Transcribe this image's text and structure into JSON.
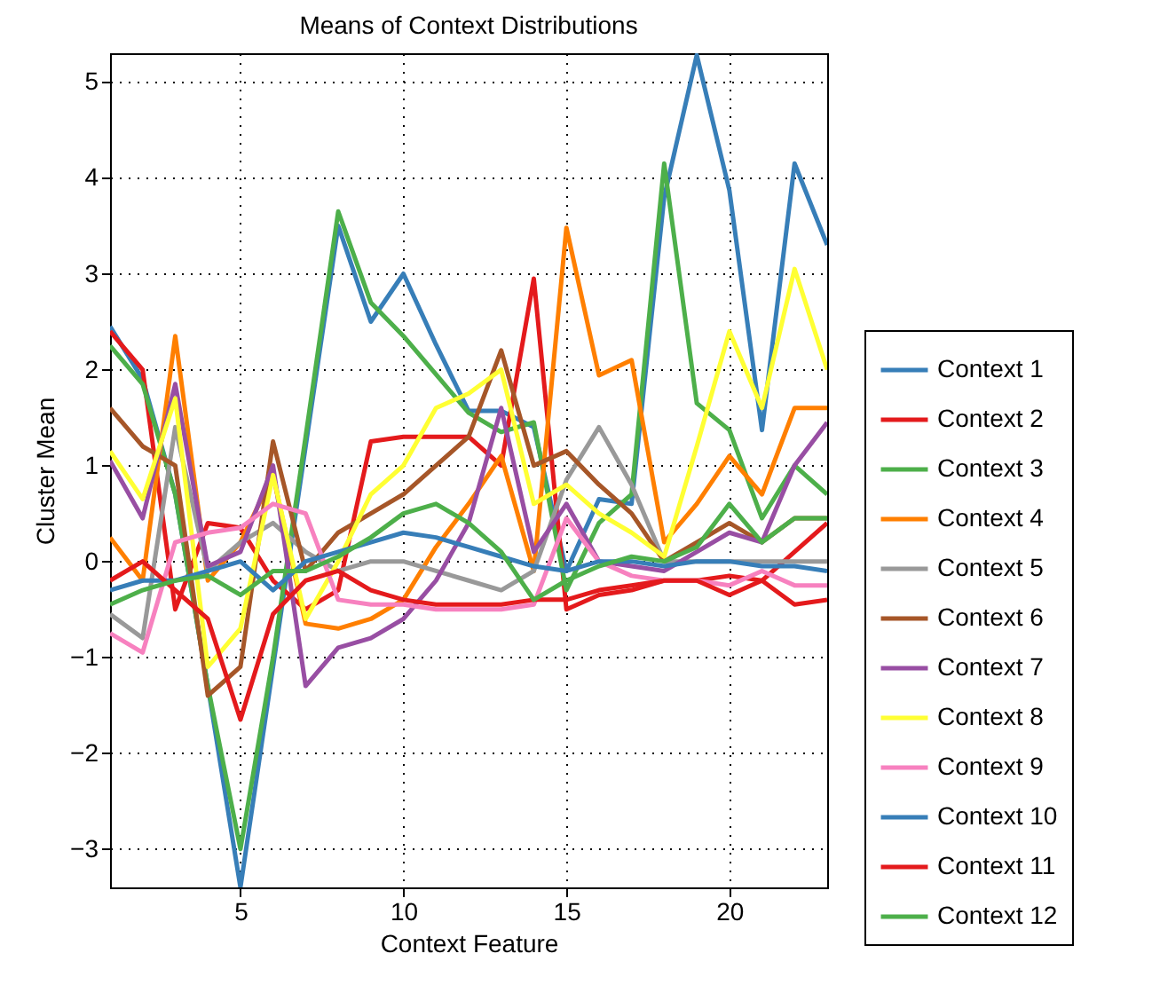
{
  "chart_data": {
    "type": "line",
    "title": "Means of Context Distributions",
    "xlabel": "Context Feature",
    "ylabel": "Cluster Mean",
    "x": [
      1,
      2,
      3,
      4,
      5,
      6,
      7,
      8,
      9,
      10,
      11,
      12,
      13,
      14,
      15,
      16,
      17,
      18,
      19,
      20,
      21,
      22,
      23
    ],
    "xlim": [
      1,
      23
    ],
    "xticks": [
      5,
      10,
      15,
      20
    ],
    "ylim": [
      -3.4,
      5.3
    ],
    "yticks": [
      -3,
      -2,
      -1,
      0,
      1,
      2,
      3,
      4,
      5
    ],
    "grid": true,
    "legend": "right",
    "line_style": "solid",
    "marker": "none",
    "series": [
      {
        "name": "Context 1",
        "color": "#377eb8",
        "values": [
          2.45,
          1.9,
          0.7,
          -1.3,
          -3.4,
          -1.1,
          1.2,
          3.5,
          2.5,
          3.0,
          2.26,
          1.57,
          1.57,
          1.4,
          -0.1,
          0.65,
          0.6,
          3.8,
          5.28,
          3.87,
          1.37,
          4.15,
          3.3
        ]
      },
      {
        "name": "Context 2",
        "color": "#e41a1c",
        "values": [
          2.4,
          2.0,
          -0.5,
          0.4,
          0.35,
          -0.2,
          -0.5,
          -0.3,
          1.25,
          1.3,
          1.3,
          1.3,
          1.0,
          2.95,
          -0.5,
          -0.35,
          -0.3,
          -0.2,
          -0.2,
          -0.15,
          -0.2,
          0.1,
          0.4
        ]
      },
      {
        "name": "Context 3",
        "color": "#4daf4a",
        "values": [
          2.25,
          1.85,
          0.7,
          -1.3,
          -3.0,
          -1.0,
          1.3,
          3.65,
          2.7,
          2.35,
          1.95,
          1.55,
          1.35,
          1.45,
          -0.3,
          0.4,
          0.7,
          4.15,
          1.65,
          1.37,
          0.45,
          1.0,
          0.7
        ]
      },
      {
        "name": "Context 4",
        "color": "#ff7f00",
        "values": [
          0.25,
          -0.2,
          2.35,
          -0.2,
          0.2,
          0.9,
          -0.65,
          -0.7,
          -0.6,
          -0.4,
          0.15,
          0.6,
          1.1,
          -0.1,
          3.48,
          1.94,
          2.1,
          0.2,
          0.6,
          1.1,
          0.7,
          1.6,
          1.6
        ]
      },
      {
        "name": "Context 5",
        "color": "#999999",
        "values": [
          -0.55,
          -0.8,
          1.4,
          -0.1,
          0.2,
          0.4,
          0.1,
          -0.1,
          0.0,
          0.0,
          -0.1,
          -0.2,
          -0.3,
          -0.1,
          0.85,
          1.4,
          0.8,
          0.0,
          0.0,
          0.0,
          0.0,
          0.0,
          0.0
        ]
      },
      {
        "name": "Context 6",
        "color": "#a65628",
        "values": [
          1.6,
          1.2,
          1.0,
          -1.4,
          -1.1,
          1.25,
          -0.1,
          0.3,
          0.5,
          0.7,
          1.0,
          1.3,
          2.2,
          1.0,
          1.15,
          0.8,
          0.5,
          0.0,
          0.2,
          0.4,
          0.2,
          0.45,
          0.45
        ]
      },
      {
        "name": "Context 7",
        "color": "#984ea3",
        "values": [
          1.05,
          0.45,
          1.85,
          -0.05,
          0.1,
          1.0,
          -1.3,
          -0.9,
          -0.8,
          -0.6,
          -0.2,
          0.4,
          1.6,
          0.1,
          0.6,
          0.0,
          -0.05,
          -0.1,
          0.1,
          0.3,
          0.2,
          1.0,
          1.45
        ]
      },
      {
        "name": "Context 8",
        "color": "#ffff33",
        "values": [
          1.15,
          0.65,
          1.7,
          -1.1,
          -0.7,
          0.9,
          -0.6,
          0.0,
          0.7,
          1.0,
          1.6,
          1.75,
          2.0,
          0.6,
          0.8,
          0.5,
          0.3,
          0.05,
          1.2,
          2.4,
          1.6,
          3.05,
          2.0
        ]
      },
      {
        "name": "Context 9",
        "color": "#f781bf",
        "values": [
          -0.75,
          -0.95,
          0.2,
          0.3,
          0.35,
          0.6,
          0.5,
          -0.4,
          -0.45,
          -0.45,
          -0.5,
          -0.5,
          -0.5,
          -0.45,
          0.45,
          0.0,
          -0.15,
          -0.2,
          -0.2,
          -0.25,
          -0.1,
          -0.25,
          -0.25
        ]
      },
      {
        "name": "Context 10",
        "color": "#377eb8",
        "values": [
          -0.3,
          -0.2,
          -0.2,
          -0.1,
          0.0,
          -0.3,
          0.0,
          0.1,
          0.2,
          0.3,
          0.25,
          0.15,
          0.05,
          -0.05,
          -0.1,
          0.0,
          0.0,
          -0.05,
          0.0,
          0.0,
          -0.05,
          -0.05,
          -0.1
        ]
      },
      {
        "name": "Context 11",
        "color": "#e41a1c",
        "values": [
          -0.2,
          0.0,
          -0.3,
          -0.6,
          -1.65,
          -0.55,
          -0.2,
          -0.1,
          -0.3,
          -0.4,
          -0.45,
          -0.45,
          -0.45,
          -0.4,
          -0.4,
          -0.3,
          -0.25,
          -0.2,
          -0.2,
          -0.35,
          -0.2,
          -0.45,
          -0.4
        ]
      },
      {
        "name": "Context 12",
        "color": "#4daf4a",
        "values": [
          -0.45,
          -0.3,
          -0.2,
          -0.15,
          -0.35,
          -0.1,
          -0.1,
          0.05,
          0.25,
          0.5,
          0.6,
          0.4,
          0.1,
          -0.4,
          -0.2,
          -0.05,
          0.05,
          0.0,
          0.15,
          0.6,
          0.2,
          0.45,
          0.45
        ]
      }
    ]
  }
}
